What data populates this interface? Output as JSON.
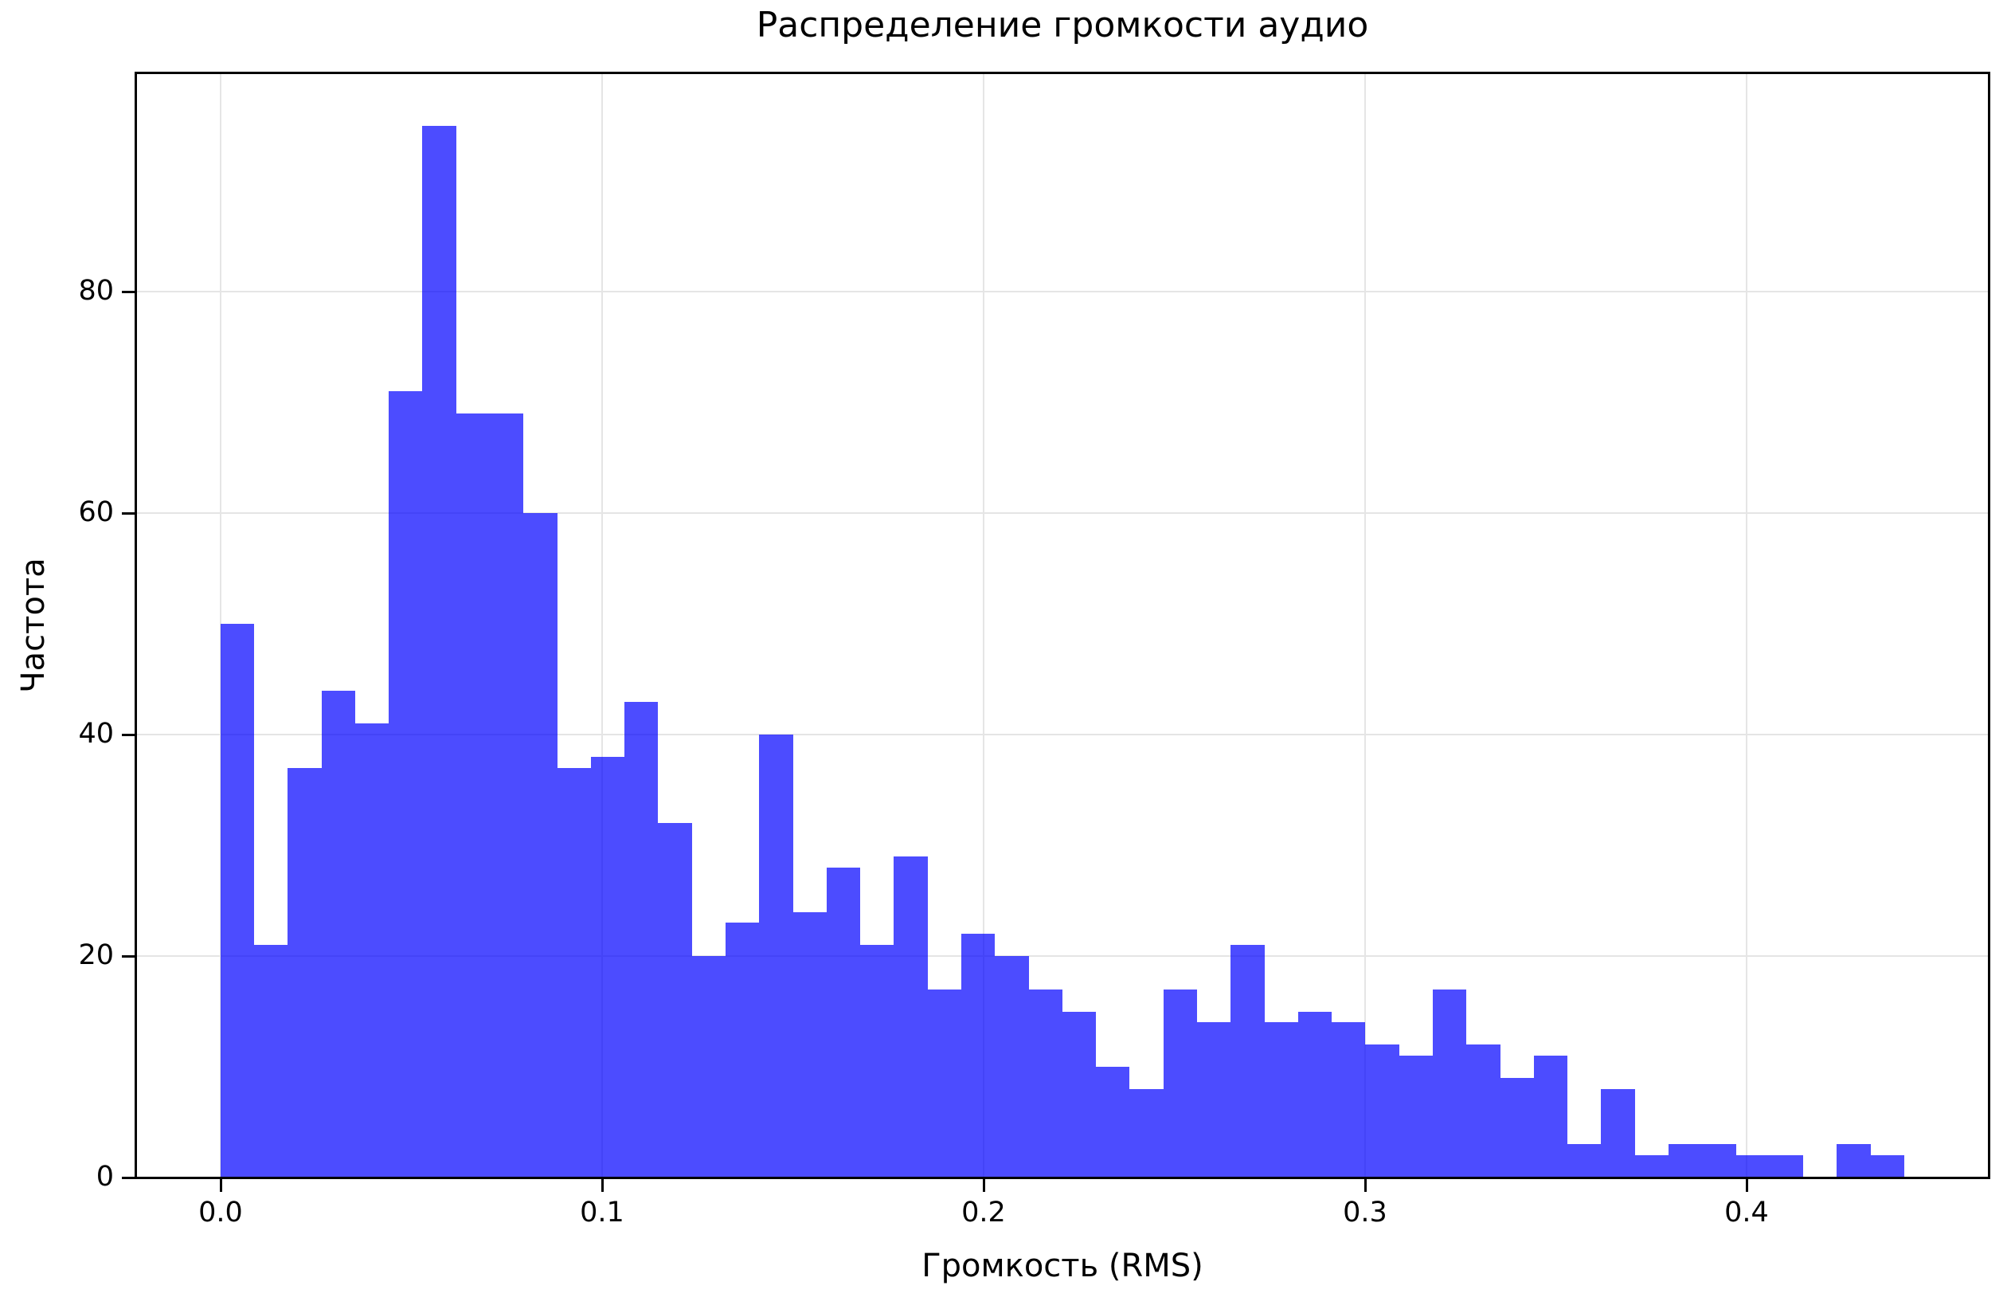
{
  "chart_data": {
    "type": "bar",
    "subtype": "histogram",
    "title": "Распределение громкости аудио",
    "xlabel": "Громкость (RMS)",
    "ylabel": "Частота",
    "bar_color": "rgba(0,0,255,0.7)",
    "bar_color_hex": "#4d4dff",
    "grid": true,
    "grid_color": "#e5e5e5",
    "background_color": "#ffffff",
    "bin_start": 0.0,
    "bin_width": 0.008827,
    "counts": [
      50,
      21,
      37,
      44,
      41,
      71,
      95,
      69,
      69,
      60,
      37,
      38,
      43,
      32,
      20,
      23,
      40,
      24,
      28,
      21,
      29,
      17,
      22,
      20,
      17,
      15,
      10,
      8,
      17,
      14,
      21,
      14,
      15,
      14,
      12,
      11,
      17,
      12,
      9,
      11,
      3,
      8,
      2,
      3,
      3,
      2,
      2,
      0,
      3,
      2
    ],
    "xlim": [
      -0.02207,
      0.46348
    ],
    "ylim": [
      0,
      99.75
    ],
    "xticks": [
      {
        "value": 0.0,
        "label": "0.0"
      },
      {
        "value": 0.1,
        "label": "0.1"
      },
      {
        "value": 0.2,
        "label": "0.2"
      },
      {
        "value": 0.3,
        "label": "0.3"
      },
      {
        "value": 0.4,
        "label": "0.4"
      }
    ],
    "yticks": [
      {
        "value": 0,
        "label": "0"
      },
      {
        "value": 20,
        "label": "20"
      },
      {
        "value": 40,
        "label": "40"
      },
      {
        "value": 60,
        "label": "60"
      },
      {
        "value": 80,
        "label": "80"
      }
    ]
  }
}
